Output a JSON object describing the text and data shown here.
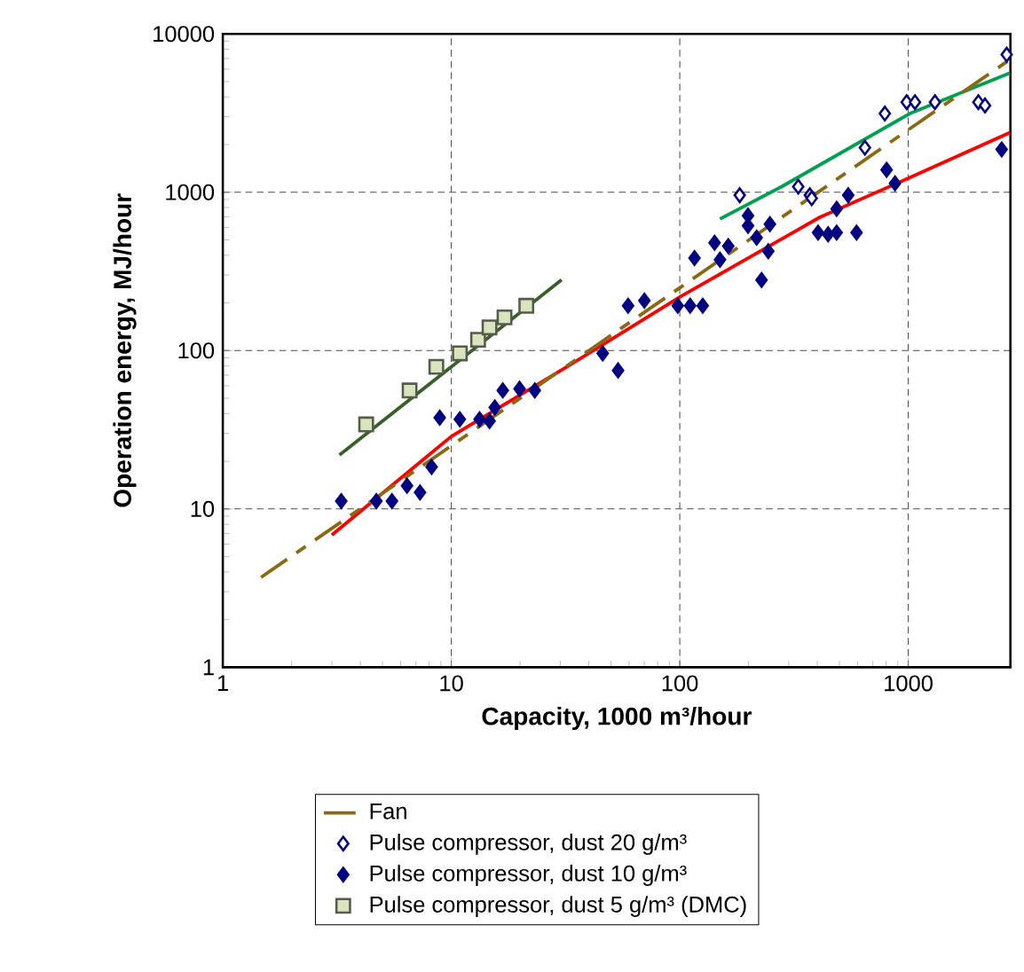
{
  "chart_data": {
    "type": "scatter",
    "xlabel": "Capacity, 1000 m³/hour",
    "ylabel": "Operation energy, MJ/hour",
    "log": "xy",
    "grid": true,
    "legend": "bottom",
    "xlim": [
      1,
      2800
    ],
    "xticks": [
      1,
      10,
      100,
      1000
    ],
    "ylim": [
      1,
      10000
    ],
    "yticks": [
      1,
      10,
      100,
      1000,
      10000
    ],
    "series": [
      {
        "name": "Fan",
        "type": "line",
        "line_style": "dashed",
        "marker": "none",
        "color": "#8b6914",
        "x": [
          1.47,
          2790
        ],
        "values": [
          3.7,
          6900
        ]
      },
      {
        "name": "Pulse compressor, dust 20 g/m³",
        "marker": "diamond",
        "color": "#000080",
        "x": [
          183,
          330,
          371,
          378,
          646,
          790,
          984,
          1070,
          1309,
          2027,
          2168,
          2697
        ],
        "values": [
          958,
          1085,
          958,
          916,
          1912,
          3140,
          3708,
          3708,
          3708,
          3708,
          3535,
          7404
        ]
      },
      {
        "name": "Pulse compressor, dust 10 g/m³",
        "marker": "diamond",
        "color": "#000080",
        "x": [
          3.3,
          4.7,
          5.5,
          6.4,
          7.3,
          8.2,
          8.9,
          10.9,
          13.3,
          14.7,
          15.5,
          16.8,
          19.9,
          23.2,
          46,
          53.7,
          59.4,
          70,
          98,
          111,
          126,
          116,
          142,
          163,
          150,
          199,
          199,
          248,
          217,
          244,
          228,
          403,
          446,
          486,
          594,
          486,
          546,
          804,
          875,
          2564
        ],
        "values": [
          11.2,
          11.2,
          11.2,
          14.0,
          12.7,
          18.4,
          37.7,
          36.8,
          36.8,
          35.9,
          43.7,
          56,
          57.4,
          56,
          96,
          75,
          192,
          207,
          192,
          192,
          192,
          384,
          480,
          457,
          375,
          712,
          614,
          629,
          517,
          424,
          279,
          556,
          543,
          556,
          556,
          786,
          958,
          1387,
          1138,
          1866
        ]
      },
      {
        "name": "Pulse compressor, dust 5 g/m³ (DMC)",
        "marker": "square",
        "color": "#d7e4bd",
        "x": [
          4.24,
          6.57,
          8.6,
          10.9,
          13.1,
          14.7,
          17.1,
          21.3
        ],
        "values": [
          34.2,
          56,
          79,
          96,
          117,
          140,
          162,
          192
        ]
      },
      {
        "type": "line",
        "line_style": "solid",
        "marker": "none",
        "color": "#ff0000",
        "x": [
          3,
          10,
          33,
          100,
          410,
          1000,
          2800
        ],
        "values": [
          6.85,
          28.7,
          81,
          218,
          695,
          1225,
          2390
        ]
      },
      {
        "type": "line",
        "line_style": "solid",
        "marker": "none",
        "color": "#00a050",
        "x": [
          150,
          279,
          1016,
          2790
        ],
        "values": [
          678,
          1085,
          3140,
          5665
        ]
      },
      {
        "type": "line",
        "line_style": "solid",
        "marker": "none",
        "color": "#3a5f2a",
        "x": [
          3.24,
          30.4
        ],
        "values": [
          21.9,
          280
        ]
      }
    ]
  }
}
